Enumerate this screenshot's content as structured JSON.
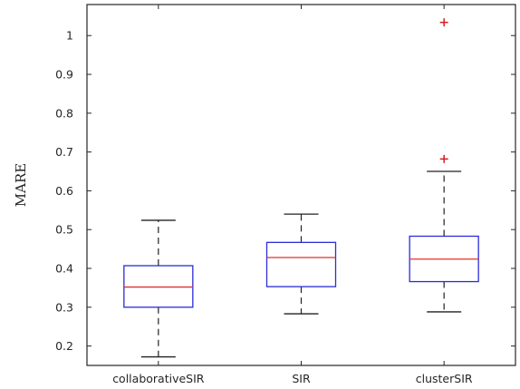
{
  "chart_data": {
    "type": "box",
    "title": "",
    "xlabel": "",
    "ylabel": "MARE",
    "ylim": [
      0.15,
      1.08
    ],
    "yticks": [
      0.2,
      0.3,
      0.4,
      0.5,
      0.6,
      0.7,
      0.8,
      0.9,
      1
    ],
    "ytick_labels": [
      "0.2",
      "0.3",
      "0.4",
      "0.5",
      "0.6",
      "0.7",
      "0.8",
      "0.9",
      "1"
    ],
    "grid": false,
    "categories": [
      "collaborativeSIR",
      "SIR",
      "clusterSIR"
    ],
    "boxes": [
      {
        "category": "collaborativeSIR",
        "whisker_low": 0.172,
        "q1": 0.3,
        "median": 0.352,
        "q3": 0.407,
        "whisker_high": 0.524,
        "outliers": []
      },
      {
        "category": "SIR",
        "whisker_low": 0.283,
        "q1": 0.353,
        "median": 0.428,
        "q3": 0.467,
        "whisker_high": 0.54,
        "outliers": []
      },
      {
        "category": "clusterSIR",
        "whisker_low": 0.288,
        "q1": 0.366,
        "median": 0.424,
        "q3": 0.483,
        "whisker_high": 0.65,
        "outliers": [
          0.682,
          1.034
        ]
      }
    ],
    "colors": {
      "box": "#2c2cd8",
      "median": "#e0322e",
      "whisker": "#222222",
      "outlier": "#d41e22",
      "axes": "#262626"
    }
  }
}
